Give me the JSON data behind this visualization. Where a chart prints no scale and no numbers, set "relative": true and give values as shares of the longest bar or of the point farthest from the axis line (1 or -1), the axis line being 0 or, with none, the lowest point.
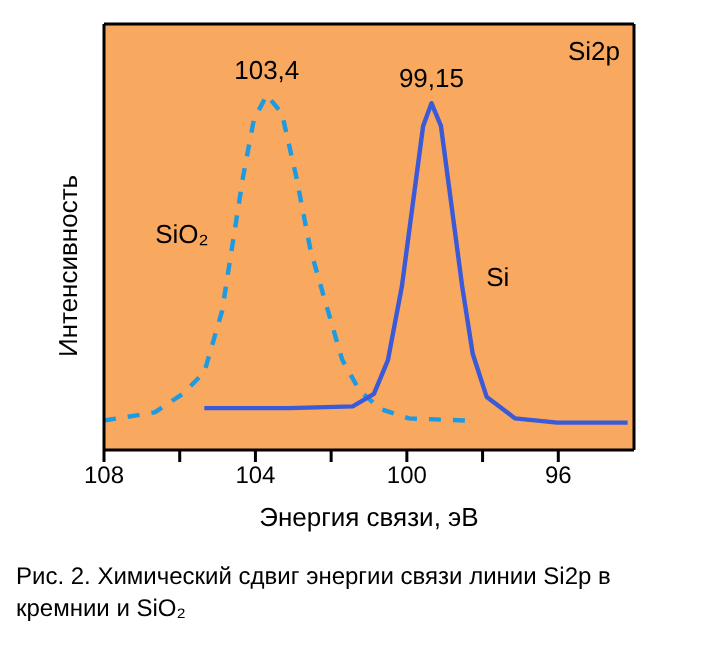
{
  "chart_data": {
    "type": "line",
    "relative": true,
    "xlabel": "Энергия связи, эВ",
    "ylabel": "Интенсивность",
    "xlim": [
      108,
      94
    ],
    "xticks": [
      108,
      {
        "value": 106,
        "label": null
      },
      104,
      {
        "value": 102,
        "label": null
      },
      100,
      {
        "value": 98,
        "label": null
      },
      96
    ],
    "series": [
      {
        "name": "SiO₂",
        "color": "#1e9ae0",
        "line_style": "dashed",
        "x": [
          108,
          106.66,
          105.92,
          105.35,
          104.88,
          104.6,
          104.32,
          104.04,
          103.7,
          103.3,
          102.93,
          102.55,
          102.18,
          101.71,
          101.25,
          100.69,
          99.95,
          98.46
        ],
        "values": [
          0.083,
          0.106,
          0.158,
          0.219,
          0.392,
          0.583,
          0.774,
          0.931,
          1.0,
          0.948,
          0.774,
          0.566,
          0.427,
          0.255,
          0.167,
          0.115,
          0.089,
          0.083
        ]
      },
      {
        "name": "Si",
        "color": "#3a5ad8",
        "line_style": "solid",
        "x": [
          105.35,
          103.1,
          101.43,
          100.87,
          100.5,
          100.13,
          99.85,
          99.57,
          99.35,
          99.1,
          98.82,
          98.54,
          98.26,
          97.89,
          97.14,
          96.03,
          94.17
        ],
        "values": [
          0.118,
          0.118,
          0.123,
          0.158,
          0.253,
          0.462,
          0.688,
          0.913,
          0.977,
          0.913,
          0.688,
          0.462,
          0.271,
          0.149,
          0.089,
          0.077,
          0.077
        ]
      }
    ],
    "annotations": [
      {
        "text": "103,4",
        "x": 103.7,
        "y": 1.0
      },
      {
        "text": "99,15",
        "x": 99.35,
        "y": 0.977
      },
      "Si2p",
      "Рис. 2. Химический сдвиг энергии связи линии Si2p в кремнии и SiO₂"
    ]
  }
}
